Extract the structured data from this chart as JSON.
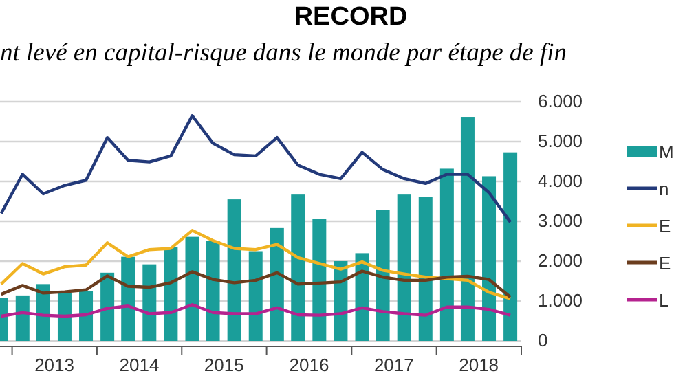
{
  "chart_data": {
    "type": "bar",
    "title": "RECORD",
    "subtitle": "nt levé en capital-risque dans le monde par étape de fin",
    "x": [
      "2012-11-15",
      "2013-02-15",
      "2013-05-15",
      "2013-08-15",
      "2013-11-15",
      "2014-02-15",
      "2014-05-15",
      "2014-08-15",
      "2014-11-15",
      "2015-02-15",
      "2015-05-15",
      "2015-08-15",
      "2015-11-15",
      "2016-02-15",
      "2016-05-15",
      "2016-08-15",
      "2016-11-15",
      "2017-02-15",
      "2017-05-15",
      "2017-08-15",
      "2017-11-15",
      "2018-02-15",
      "2018-05-15",
      "2018-08-15",
      "2018-11-15"
    ],
    "series": [
      {
        "name": "M",
        "color": "#1a9e9a",
        "values": [
          1080,
          1140,
          1425,
          1200,
          1250,
          1710,
          2110,
          1920,
          2345,
          2610,
          2517,
          3550,
          2250,
          2830,
          3670,
          3060,
          2000,
          2200,
          3290,
          3670,
          3610,
          4320,
          5620,
          4130,
          4730
        ]
      },
      {
        "name": "n",
        "type": "line",
        "color": "#233a7a",
        "values": [
          3200,
          4180,
          3690,
          3900,
          4030,
          5100,
          4530,
          4490,
          4640,
          5650,
          4960,
          4670,
          4640,
          5100,
          4410,
          4180,
          4070,
          4730,
          4300,
          4070,
          3950,
          4180,
          4180,
          3720,
          2980
        ]
      },
      {
        "name": "E",
        "type": "line",
        "color": "#f0b323",
        "values": [
          1425,
          1940,
          1680,
          1860,
          1900,
          2460,
          2110,
          2290,
          2320,
          2770,
          2517,
          2320,
          2290,
          2420,
          2090,
          1940,
          1800,
          1980,
          1770,
          1680,
          1600,
          1560,
          1520,
          1220,
          1060
        ]
      },
      {
        "name": "E",
        "type": "line",
        "color": "#6b3d1e",
        "values": [
          1170,
          1390,
          1200,
          1230,
          1280,
          1630,
          1370,
          1345,
          1460,
          1735,
          1540,
          1460,
          1520,
          1710,
          1425,
          1450,
          1480,
          1750,
          1600,
          1520,
          1520,
          1600,
          1620,
          1540,
          1100
        ]
      },
      {
        "name": "L",
        "type": "line",
        "color": "#b5238f",
        "values": [
          620,
          710,
          645,
          620,
          655,
          815,
          875,
          680,
          710,
          910,
          710,
          680,
          680,
          830,
          655,
          645,
          680,
          830,
          735,
          680,
          645,
          850,
          850,
          790,
          645
        ]
      }
    ],
    "xlim": [
      "2012-11-10",
      "2019-01-01"
    ],
    "xticks": [
      {
        "value": "2013-01-01",
        "label": null
      },
      {
        "value": "2013-07-02",
        "label": "2013"
      },
      {
        "value": "2014-01-01",
        "label": null
      },
      {
        "value": "2014-07-02",
        "label": "2014"
      },
      {
        "value": "2015-01-01",
        "label": null
      },
      {
        "value": "2015-07-02",
        "label": "2015"
      },
      {
        "value": "2016-01-01",
        "label": null
      },
      {
        "value": "2016-07-02",
        "label": "2016"
      },
      {
        "value": "2017-01-01",
        "label": null
      },
      {
        "value": "2017-07-02",
        "label": "2017"
      },
      {
        "value": "2018-01-01",
        "label": null
      },
      {
        "value": "2018-07-02",
        "label": "2018"
      },
      {
        "value": "2019-01-01",
        "label": null
      }
    ],
    "ylim": [
      0,
      6000
    ],
    "yticks": [
      {
        "value": 0,
        "label": "0"
      },
      {
        "value": 1000,
        "label": "1.000"
      },
      {
        "value": 2000,
        "label": "2.000"
      },
      {
        "value": 3000,
        "label": "3.000"
      },
      {
        "value": 4000,
        "label": "4.000"
      },
      {
        "value": 5000,
        "label": "5.000"
      },
      {
        "value": 6000,
        "label": "6.000"
      }
    ],
    "grid": "y",
    "legend": "right",
    "line_style": "solid",
    "marker": "none"
  }
}
